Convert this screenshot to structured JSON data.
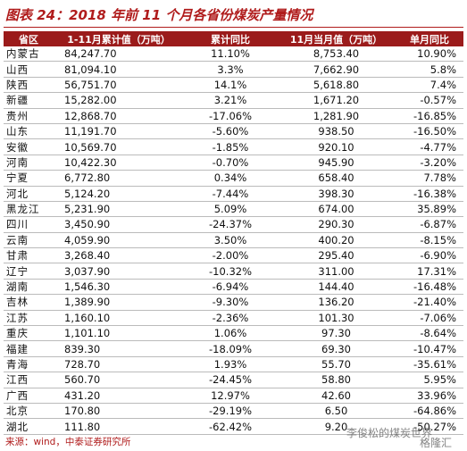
{
  "header": {
    "title": "图表 24：2018 年前 11 个月各省份煤炭产量情况"
  },
  "table": {
    "headers": [
      "省区",
      "1-11月累计值（万吨）",
      "累计同比",
      "11月当月值（万吨）",
      "单月同比"
    ],
    "rows": [
      [
        "内蒙古",
        "84,247.70",
        "11.10%",
        "8,753.40",
        "10.90%"
      ],
      [
        "山西",
        "81,094.10",
        "3.3%",
        "7,662.90",
        "5.8%"
      ],
      [
        "陕西",
        "56,751.70",
        "14.1%",
        "5,618.80",
        "7.4%"
      ],
      [
        "新疆",
        "15,282.00",
        "3.21%",
        "1,671.20",
        "-0.57%"
      ],
      [
        "贵州",
        "12,868.70",
        "-17.06%",
        "1,281.90",
        "-16.85%"
      ],
      [
        "山东",
        "11,191.70",
        "-5.60%",
        "938.50",
        "-16.50%"
      ],
      [
        "安徽",
        "10,569.70",
        "-1.85%",
        "920.10",
        "-4.77%"
      ],
      [
        "河南",
        "10,422.30",
        "-0.70%",
        "945.90",
        "-3.20%"
      ],
      [
        "宁夏",
        "6,772.80",
        "0.34%",
        "658.40",
        "7.78%"
      ],
      [
        "河北",
        "5,124.20",
        "-7.44%",
        "398.30",
        "-16.38%"
      ],
      [
        "黑龙江",
        "5,231.90",
        "5.09%",
        "674.00",
        "35.89%"
      ],
      [
        "四川",
        "3,450.90",
        "-24.37%",
        "290.30",
        "-6.87%"
      ],
      [
        "云南",
        "4,059.90",
        "3.50%",
        "400.20",
        "-8.15%"
      ],
      [
        "甘肃",
        "3,268.40",
        "-2.00%",
        "295.40",
        "-6.90%"
      ],
      [
        "辽宁",
        "3,037.90",
        "-10.32%",
        "311.00",
        "17.31%"
      ],
      [
        "湖南",
        "1,546.30",
        "-6.94%",
        "144.40",
        "-16.48%"
      ],
      [
        "吉林",
        "1,389.90",
        "-9.30%",
        "136.20",
        "-21.40%"
      ],
      [
        "江苏",
        "1,160.10",
        "-2.36%",
        "101.30",
        "-7.06%"
      ],
      [
        "重庆",
        "1,101.10",
        "1.06%",
        "97.30",
        "-8.64%"
      ],
      [
        "福建",
        "839.30",
        "-18.09%",
        "69.30",
        "-10.47%"
      ],
      [
        "青海",
        "728.70",
        "1.93%",
        "55.70",
        "-35.61%"
      ],
      [
        "江西",
        "560.70",
        "-24.45%",
        "58.80",
        "5.95%"
      ],
      [
        "广西",
        "431.20",
        "12.97%",
        "42.60",
        "33.96%"
      ],
      [
        "北京",
        "170.80",
        "-29.19%",
        "6.50",
        "-64.86%"
      ],
      [
        "湖北",
        "111.80",
        "-62.42%",
        "9.20",
        "-50.27%"
      ]
    ]
  },
  "footer": {
    "source": "来源：wind，中泰证券研究所",
    "watermark": "李俊松的煤炭世界",
    "watermark2": "格隆汇"
  }
}
